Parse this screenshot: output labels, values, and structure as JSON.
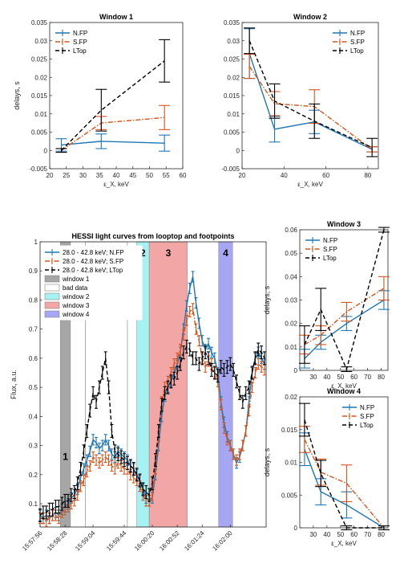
{
  "colors": {
    "nfp": "#1f77b4",
    "sfp": "#d95319",
    "ltop": "#000000",
    "win1": "#a6a6a6",
    "win2": "#a6f2f2",
    "win3": "#f2a6a6",
    "win4": "#a6a6f2"
  },
  "chart_data": [
    {
      "id": "window1",
      "type": "line",
      "title": "Window 1",
      "xlabel": "ε_X, keV",
      "ylabel": "delays, s",
      "xlim": [
        20,
        60
      ],
      "ylim": [
        -0.005,
        0.035
      ],
      "xticks": [
        "20",
        "25",
        "30",
        "35",
        "40",
        "45",
        "50",
        "55",
        "60"
      ],
      "yticks": [
        "-0.005",
        "0",
        "0.005",
        "0.01",
        "0.015",
        "0.02",
        "0.025",
        "0.03",
        "0.035"
      ],
      "legend": "top-left",
      "series": [
        {
          "name": "N.FP",
          "style": "solid",
          "x": [
            23.5,
            35.5,
            54.5
          ],
          "y": [
            0.0015,
            0.0025,
            0.002
          ],
          "err": [
            0.0017,
            0.002,
            0.0022
          ]
        },
        {
          "name": "S.FP",
          "style": "dashdot",
          "x": [
            23.5,
            35.5,
            54.5
          ],
          "y": [
            0.0,
            0.0075,
            0.009
          ],
          "err": [
            0.0005,
            0.0018,
            0.0033
          ]
        },
        {
          "name": "LTop",
          "style": "dashed",
          "x": [
            23.5,
            35.5,
            54.5
          ],
          "y": [
            0.0,
            0.011,
            0.0245
          ],
          "err": [
            0.0005,
            0.0057,
            0.0058
          ]
        }
      ]
    },
    {
      "id": "window2",
      "type": "line",
      "title": "Window 2",
      "xlabel": "ε_X, keV",
      "ylabel": "",
      "xlim": [
        20,
        85
      ],
      "ylim": [
        -0.005,
        0.035
      ],
      "xticks": [
        "20",
        "40",
        "60",
        "80"
      ],
      "yticks": [
        "-0.005",
        "0",
        "0.005",
        "0.01",
        "0.015",
        "0.02",
        "0.025",
        "0.03",
        "0.035"
      ],
      "legend": "top-right",
      "series": [
        {
          "name": "N.FP",
          "style": "solid",
          "x": [
            23.5,
            35.5,
            54.5,
            82
          ],
          "y": [
            0.0265,
            0.0058,
            0.0078,
            0.0003
          ],
          "err": [
            0.0068,
            0.0035,
            0.0032,
            0.0007
          ]
        },
        {
          "name": "S.FP",
          "style": "dashdot",
          "x": [
            23.5,
            35.5,
            54.5,
            82
          ],
          "y": [
            0.023,
            0.0128,
            0.012,
            0.0003
          ],
          "err": [
            0.0033,
            0.0033,
            0.0046,
            0.0007
          ]
        },
        {
          "name": "LTop",
          "style": "dashed",
          "x": [
            23.5,
            35.5,
            54.5,
            82
          ],
          "y": [
            0.03,
            0.0135,
            0.008,
            0.0008
          ],
          "err": [
            0.0035,
            0.0047,
            0.0047,
            0.0025
          ]
        }
      ]
    },
    {
      "id": "lightcurves",
      "type": "line",
      "title": "HESSI light curves from looptop and footpoints",
      "xlabel": "",
      "ylabel": "Flux, a.u.",
      "xlim": [
        0,
        290
      ],
      "ylim": [
        0.02,
        1.0
      ],
      "xticks": [
        "15:57:56",
        "15:58:28",
        "15:59:04",
        "15:59:44",
        "16:00:20",
        "16:00:52",
        "16:01:24",
        "16:02:00"
      ],
      "xtick_values": [
        0,
        32,
        68,
        108,
        144,
        176,
        208,
        244
      ],
      "yticks": [
        "0.1",
        "0.2",
        "0.3",
        "0.4",
        "0.5",
        "0.6",
        "0.7",
        "0.8",
        "0.9",
        "1"
      ],
      "legend": "top-left",
      "windows": [
        {
          "label": "1",
          "name": "window 1",
          "from": 26,
          "to": 39
        },
        {
          "label": "2",
          "name": "window 2",
          "from": 124,
          "to": 140
        },
        {
          "label": "3",
          "name": "window 3",
          "from": 140,
          "to": 189
        },
        {
          "label": "4",
          "name": "window 4",
          "from": 229,
          "to": 247
        }
      ],
      "bad_data": [
        {
          "from": 58,
          "to": 112
        }
      ],
      "series": [
        {
          "name": "28.0 - 42.8 keV; N.FP",
          "style": "solid",
          "t": [
            0,
            4,
            8,
            12,
            16,
            20,
            24,
            28,
            32,
            36,
            40,
            44,
            48,
            52,
            56,
            60,
            64,
            68,
            72,
            76,
            80,
            84,
            88,
            92,
            96,
            100,
            104,
            108,
            112,
            116,
            120,
            124,
            128,
            132,
            136,
            140,
            144,
            148,
            152,
            156,
            160,
            164,
            168,
            172,
            176,
            180,
            184,
            188,
            192,
            196,
            200,
            204,
            208,
            212,
            216,
            220,
            224,
            228,
            232,
            236,
            240,
            244,
            248,
            252,
            256,
            260,
            264,
            268,
            272,
            276,
            280,
            284,
            288
          ],
          "y": [
            0.06,
            0.05,
            0.06,
            0.05,
            0.06,
            0.07,
            0.06,
            0.08,
            0.09,
            0.1,
            0.12,
            0.13,
            0.15,
            0.19,
            0.22,
            0.25,
            0.28,
            0.32,
            0.31,
            0.29,
            0.3,
            0.32,
            0.3,
            0.27,
            0.26,
            0.28,
            0.27,
            0.26,
            0.25,
            0.23,
            0.22,
            0.2,
            0.18,
            0.15,
            0.12,
            0.11,
            0.12,
            0.2,
            0.3,
            0.4,
            0.47,
            0.5,
            0.52,
            0.55,
            0.58,
            0.62,
            0.7,
            0.78,
            0.84,
            0.88,
            0.79,
            0.72,
            0.66,
            0.63,
            0.65,
            0.62,
            0.6,
            0.55,
            0.45,
            0.38,
            0.33,
            0.3,
            0.27,
            0.24,
            0.26,
            0.3,
            0.35,
            0.45,
            0.55,
            0.6,
            0.62,
            0.6,
            0.58
          ],
          "err": 0.018
        },
        {
          "name": "28.0 - 42.8 keV; S.FP",
          "style": "dashdot",
          "t": [
            0,
            4,
            8,
            12,
            16,
            20,
            24,
            28,
            32,
            36,
            40,
            44,
            48,
            52,
            56,
            60,
            64,
            68,
            72,
            76,
            80,
            84,
            88,
            92,
            96,
            100,
            104,
            108,
            112,
            116,
            120,
            124,
            128,
            132,
            136,
            140,
            144,
            148,
            152,
            156,
            160,
            164,
            168,
            172,
            176,
            180,
            184,
            188,
            192,
            196,
            200,
            204,
            208,
            212,
            216,
            220,
            224,
            228,
            232,
            236,
            240,
            244,
            248,
            252,
            256,
            260,
            264,
            268,
            272,
            276,
            280,
            284,
            288
          ],
          "y": [
            0.05,
            0.05,
            0.04,
            0.05,
            0.06,
            0.06,
            0.05,
            0.07,
            0.08,
            0.09,
            0.1,
            0.11,
            0.13,
            0.16,
            0.18,
            0.21,
            0.23,
            0.26,
            0.25,
            0.24,
            0.25,
            0.26,
            0.25,
            0.23,
            0.22,
            0.24,
            0.23,
            0.22,
            0.22,
            0.2,
            0.19,
            0.18,
            0.16,
            0.13,
            0.11,
            0.11,
            0.13,
            0.22,
            0.33,
            0.45,
            0.5,
            0.52,
            0.55,
            0.58,
            0.6,
            0.63,
            0.68,
            0.73,
            0.76,
            0.77,
            0.7,
            0.66,
            0.6,
            0.57,
            0.59,
            0.58,
            0.55,
            0.52,
            0.44,
            0.36,
            0.32,
            0.3,
            0.27,
            0.25,
            0.27,
            0.3,
            0.35,
            0.42,
            0.5,
            0.55,
            0.58,
            0.57,
            0.56
          ],
          "err": 0.018
        },
        {
          "name": "28.0 - 42.8 keV; LTop",
          "style": "dashed",
          "t": [
            0,
            4,
            8,
            12,
            16,
            20,
            24,
            28,
            32,
            36,
            40,
            44,
            48,
            52,
            56,
            60,
            64,
            68,
            72,
            76,
            80,
            84,
            88,
            92,
            96,
            100,
            104,
            108,
            112,
            116,
            120,
            124,
            128,
            132,
            136,
            140,
            144,
            148,
            152,
            156,
            160,
            164,
            168,
            172,
            176,
            180,
            184,
            188,
            192,
            196,
            200,
            204,
            208,
            212,
            216,
            220,
            224,
            228,
            232,
            236,
            240,
            244,
            248,
            252,
            256,
            260,
            264,
            268,
            272,
            276,
            280,
            284,
            288
          ],
          "y": [
            0.06,
            0.07,
            0.07,
            0.08,
            0.08,
            0.09,
            0.09,
            0.1,
            0.11,
            0.11,
            0.13,
            0.14,
            0.17,
            0.22,
            0.28,
            0.35,
            0.42,
            0.48,
            0.45,
            0.5,
            0.55,
            0.6,
            0.5,
            0.35,
            0.28,
            0.27,
            0.26,
            0.25,
            0.24,
            0.23,
            0.22,
            0.2,
            0.18,
            0.15,
            0.14,
            0.13,
            0.17,
            0.25,
            0.35,
            0.44,
            0.48,
            0.5,
            0.52,
            0.53,
            0.55,
            0.58,
            0.62,
            0.64,
            0.63,
            0.6,
            0.6,
            0.58,
            0.6,
            0.62,
            0.6,
            0.56,
            0.55,
            0.54,
            0.57,
            0.56,
            0.57,
            0.58,
            0.56,
            0.52,
            0.48,
            0.45,
            0.48,
            0.5,
            0.55,
            0.6,
            0.63,
            0.62,
            0.6
          ],
          "err": 0.022
        }
      ]
    },
    {
      "id": "window3",
      "type": "line",
      "title": "Window 3",
      "xlabel": "ε_X, keV",
      "ylabel": "delays, s",
      "xlim": [
        20,
        85
      ],
      "ylim": [
        0,
        0.06
      ],
      "xticks": [
        "30",
        "40",
        "50",
        "60",
        "70",
        "80"
      ],
      "yticks": [
        "0",
        "0.01",
        "0.02",
        "0.03",
        "0.04",
        "0.05",
        "0.06"
      ],
      "legend": "top-left",
      "series": [
        {
          "name": "N.FP",
          "style": "solid",
          "x": [
            23.5,
            35.5,
            54.5,
            82
          ],
          "y": [
            0.005,
            0.012,
            0.02,
            0.03
          ],
          "err": [
            0.004,
            0.003,
            0.003,
            0.004
          ]
        },
        {
          "name": "S.FP",
          "style": "dashdot",
          "x": [
            23.5,
            35.5,
            54.5,
            82
          ],
          "y": [
            0.011,
            0.015,
            0.025,
            0.035
          ],
          "err": [
            0.004,
            0.004,
            0.004,
            0.005
          ]
        },
        {
          "name": "LTop",
          "style": "dashed",
          "x": [
            23.5,
            35.5,
            54.5,
            82
          ],
          "y": [
            0.011,
            0.026,
            0.0005,
            0.06
          ],
          "err": [
            0.008,
            0.009,
            0.001,
            0.001
          ]
        }
      ]
    },
    {
      "id": "window4",
      "type": "line",
      "title": "Window 4",
      "xlabel": "ε_X, keV",
      "ylabel": "delays, s",
      "xlim": [
        20,
        85
      ],
      "ylim": [
        0,
        0.02
      ],
      "xticks": [
        "30",
        "40",
        "50",
        "60",
        "70",
        "80"
      ],
      "yticks": [
        "0",
        "0.005",
        "0.01",
        "0.015",
        "0.02"
      ],
      "legend": "top-right",
      "series": [
        {
          "name": "N.FP",
          "style": "solid",
          "x": [
            23.5,
            35.5,
            54.5,
            82
          ],
          "y": [
            0.012,
            0.0055,
            0.0035,
            0.0
          ],
          "err": [
            0.0025,
            0.002,
            0.002,
            0.0003
          ]
        },
        {
          "name": "S.FP",
          "style": "dashdot",
          "x": [
            23.5,
            35.5,
            54.5,
            82
          ],
          "y": [
            0.0135,
            0.0085,
            0.0068,
            0.0
          ],
          "err": [
            0.002,
            0.002,
            0.0028,
            0.0003
          ]
        },
        {
          "name": "LTop",
          "style": "dashed",
          "x": [
            23.5,
            35.5,
            54.5,
            82
          ],
          "y": [
            0.0165,
            0.0083,
            0.0,
            0.0
          ],
          "err": [
            0.0025,
            0.002,
            0.0003,
            0.0003
          ]
        }
      ]
    }
  ]
}
